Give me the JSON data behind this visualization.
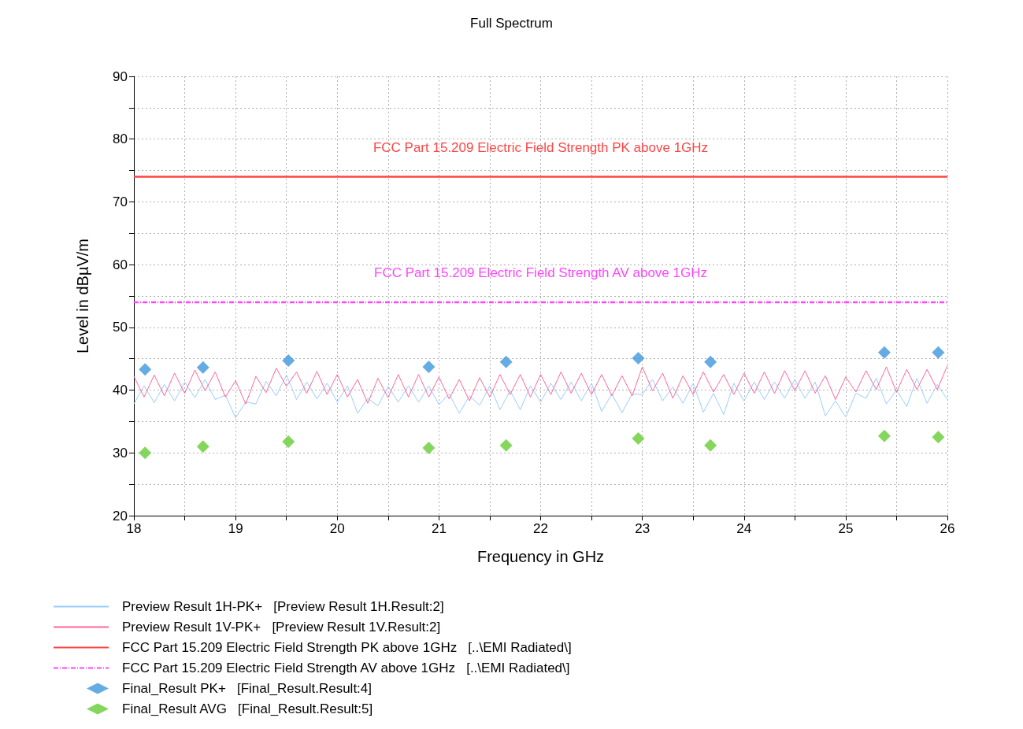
{
  "chart_data": {
    "type": "line",
    "title": "Full Spectrum",
    "xlabel": "Frequency in GHz",
    "ylabel": "Level in dBµV/m",
    "xlim": [
      18,
      26
    ],
    "xticks": [
      18,
      {
        "value": 18.5,
        "label": null
      },
      19,
      {
        "value": 19.5,
        "label": null
      },
      20,
      {
        "value": 20.5,
        "label": null
      },
      21,
      {
        "value": 21.5,
        "label": null
      },
      22,
      {
        "value": 22.5,
        "label": null
      },
      23,
      {
        "value": 23.5,
        "label": null
      },
      24,
      {
        "value": 24.5,
        "label": null
      },
      25,
      {
        "value": 25.5,
        "label": null
      },
      26
    ],
    "ylim": [
      20,
      90
    ],
    "yticks": [
      20,
      {
        "value": 25,
        "label": null
      },
      30,
      {
        "value": 35,
        "label": null
      },
      40,
      {
        "value": 45,
        "label": null
      },
      50,
      {
        "value": 55,
        "label": null
      },
      60,
      {
        "value": 65,
        "label": null
      },
      70,
      {
        "value": 75,
        "label": null
      },
      80,
      {
        "value": 85,
        "label": null
      },
      90
    ],
    "grid": true,
    "legend": "bottom",
    "marker": "none",
    "line_style": "solid",
    "x": [
      18.0,
      18.1,
      18.2,
      18.3,
      18.4,
      18.5,
      18.6,
      18.7,
      18.8,
      18.9,
      19.0,
      19.1,
      19.2,
      19.3,
      19.4,
      19.5,
      19.6,
      19.7,
      19.8,
      19.9,
      20.0,
      20.1,
      20.2,
      20.3,
      20.4,
      20.5,
      20.6,
      20.7,
      20.8,
      20.9,
      21.0,
      21.1,
      21.2,
      21.3,
      21.4,
      21.5,
      21.6,
      21.7,
      21.8,
      21.9,
      22.0,
      22.1,
      22.2,
      22.3,
      22.4,
      22.5,
      22.6,
      22.7,
      22.8,
      22.9,
      23.0,
      23.1,
      23.2,
      23.3,
      23.4,
      23.5,
      23.6,
      23.7,
      23.8,
      23.9,
      24.0,
      24.1,
      24.2,
      24.3,
      24.4,
      24.5,
      24.6,
      24.7,
      24.8,
      24.9,
      25.0,
      25.1,
      25.2,
      25.3,
      25.4,
      25.5,
      25.6,
      25.7,
      25.8,
      25.9,
      26.0
    ],
    "series": [
      {
        "name": "Preview Result 1H-PK+   [Preview Result 1H.Result:2]",
        "color": "#99ccff",
        "values": [
          37.8,
          40.7,
          38.0,
          40.9,
          38.3,
          41.3,
          38.8,
          41.7,
          38.5,
          39.2,
          35.6,
          38.1,
          37.8,
          41.4,
          39.1,
          42.4,
          38.5,
          41.3,
          38.6,
          41.1,
          38.1,
          40.7,
          36.3,
          38.7,
          37.5,
          40.6,
          38.1,
          40.7,
          38.1,
          40.7,
          37.7,
          39.4,
          36.3,
          39.1,
          37.6,
          40.7,
          36.9,
          39.9,
          36.9,
          40.7,
          38.1,
          41.1,
          38.5,
          41.3,
          38.3,
          41.1,
          36.6,
          39.4,
          36.4,
          39.4,
          39.3,
          41.7,
          38.3,
          40.5,
          37.9,
          41.1,
          36.5,
          39.5,
          36.1,
          41.1,
          38.3,
          41.3,
          38.5,
          41.3,
          38.7,
          41.7,
          38.7,
          41.3,
          35.9,
          38.3,
          35.7,
          39.5,
          38.7,
          41.9,
          37.8,
          40.0,
          37.4,
          41.9,
          37.9,
          40.9,
          38.5
        ]
      },
      {
        "name": "Preview Result 1V-PK+   [Preview Result 1V.Result:2]",
        "color": "#ff6699",
        "values": [
          42.2,
          38.9,
          42.4,
          39.1,
          42.7,
          39.5,
          43.2,
          39.9,
          42.9,
          38.9,
          41.5,
          37.8,
          42.2,
          39.6,
          43.5,
          40.6,
          42.9,
          39.5,
          43.0,
          39.3,
          42.5,
          38.9,
          41.7,
          37.9,
          41.9,
          38.8,
          42.5,
          38.9,
          42.5,
          38.9,
          42.1,
          38.6,
          41.7,
          38.3,
          42.0,
          38.9,
          42.5,
          39.3,
          42.5,
          38.9,
          42.5,
          39.3,
          42.9,
          39.5,
          42.7,
          39.3,
          42.5,
          39.1,
          42.3,
          39.1,
          43.7,
          39.9,
          42.7,
          38.7,
          42.3,
          39.3,
          42.9,
          39.7,
          42.5,
          39.3,
          42.7,
          39.5,
          42.9,
          39.5,
          43.1,
          39.9,
          43.1,
          39.5,
          42.3,
          38.5,
          42.1,
          39.7,
          43.1,
          40.1,
          43.7,
          39.7,
          43.3,
          40.1,
          43.3,
          40.1,
          43.9
        ]
      },
      {
        "name": "FCC Part 15.209 Electric Field Strength PK above 1GHz   [..\\EMI Radiated\\]",
        "type": "line",
        "color": "#ff4444",
        "line_style": "solid",
        "x": [
          18,
          26
        ],
        "values": [
          74,
          74
        ]
      },
      {
        "name": "FCC Part 15.209 Electric Field Strength AV above 1GHz   [..\\EMI Radiated\\]",
        "type": "line",
        "color": "#ff44ff",
        "line_style": "dotted",
        "x": [
          18,
          26
        ],
        "values": [
          54,
          54
        ]
      },
      {
        "name": "Final_Result PK+   [Final_Result.Result:4]",
        "type": "scatter",
        "marker": "diamond",
        "color": "#3d97dc",
        "x": [
          18.11,
          18.68,
          19.52,
          20.9,
          21.66,
          22.96,
          23.67,
          25.38,
          25.91
        ],
        "values": [
          43.3,
          43.6,
          44.7,
          43.7,
          44.5,
          45.1,
          44.5,
          46.0,
          46.0
        ]
      },
      {
        "name": "Final_Result AVG   [Final_Result.Result:5]",
        "type": "scatter",
        "marker": "diamond",
        "color": "#66cc33",
        "x": [
          18.11,
          18.68,
          19.52,
          20.9,
          21.66,
          22.96,
          23.67,
          25.38,
          25.91
        ],
        "values": [
          30.0,
          31.0,
          31.8,
          30.8,
          31.2,
          32.3,
          31.2,
          32.7,
          32.5
        ]
      }
    ],
    "annotations": [
      "FCC Part 15.209 Electric Field Strength PK above 1GHz",
      "FCC Part 15.209 Electric Field Strength AV above 1GHz"
    ]
  }
}
